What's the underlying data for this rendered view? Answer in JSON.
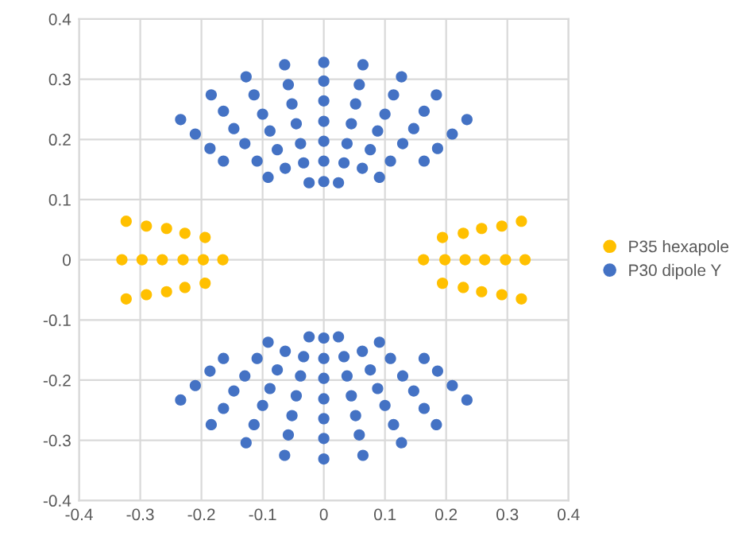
{
  "chart_data": {
    "type": "scatter",
    "series": [
      {
        "name": "P35 hexapole",
        "color": "#ffc000",
        "x": [
          -0.33,
          -0.297,
          -0.264,
          -0.23,
          -0.197,
          -0.165,
          -0.323,
          -0.29,
          -0.257,
          -0.227,
          -0.194,
          -0.323,
          -0.29,
          -0.257,
          -0.227,
          -0.194,
          0.163,
          0.198,
          0.231,
          0.263,
          0.297,
          0.329,
          0.194,
          0.228,
          0.258,
          0.291,
          0.323,
          0.194,
          0.228,
          0.258,
          0.291,
          0.323
        ],
        "values": [
          0,
          0,
          0,
          0,
          0,
          0,
          0.064,
          0.056,
          0.052,
          0.044,
          0.037,
          -0.065,
          -0.058,
          -0.053,
          -0.046,
          -0.039,
          0,
          0,
          0,
          0,
          0,
          0,
          0.037,
          0.044,
          0.052,
          0.056,
          0.064,
          -0.039,
          -0.046,
          -0.053,
          -0.058,
          -0.065
        ]
      },
      {
        "name": "P30 dipole Y",
        "color": "#4472c4",
        "x": [
          0,
          0,
          0,
          0,
          0,
          0,
          0,
          -0.024,
          0.024,
          -0.064,
          0.064,
          -0.058,
          0.058,
          -0.052,
          0.052,
          -0.045,
          0.045,
          -0.038,
          0.038,
          -0.033,
          0.033,
          -0.063,
          0.063,
          -0.127,
          0.127,
          -0.114,
          0.114,
          -0.1,
          0.1,
          -0.088,
          0.088,
          -0.076,
          0.076,
          -0.091,
          0.091,
          -0.129,
          0.129,
          -0.109,
          0.109,
          -0.184,
          0.184,
          -0.164,
          0.164,
          -0.147,
          0.147,
          -0.164,
          0.164,
          -0.186,
          0.186,
          -0.21,
          0.21,
          -0.234,
          0.234,
          0,
          0,
          0,
          0,
          0,
          0,
          0,
          -0.024,
          0.024,
          -0.064,
          0.064,
          -0.058,
          0.058,
          -0.052,
          0.052,
          -0.045,
          0.045,
          -0.038,
          0.038,
          -0.033,
          0.033,
          -0.063,
          0.063,
          -0.127,
          0.127,
          -0.114,
          0.114,
          -0.1,
          0.1,
          -0.088,
          0.088,
          -0.076,
          0.076,
          -0.091,
          0.091,
          -0.129,
          0.129,
          -0.109,
          0.109,
          -0.184,
          0.184,
          -0.164,
          0.164,
          -0.147,
          0.147,
          -0.164,
          0.164,
          -0.186,
          0.186,
          -0.21,
          0.21,
          -0.234,
          0.234
        ],
        "values": [
          0.328,
          0.297,
          0.264,
          0.23,
          0.197,
          0.164,
          0.13,
          0.128,
          0.128,
          0.324,
          0.324,
          0.291,
          0.291,
          0.259,
          0.259,
          0.226,
          0.226,
          0.193,
          0.193,
          0.161,
          0.161,
          0.152,
          0.152,
          0.304,
          0.304,
          0.274,
          0.274,
          0.242,
          0.242,
          0.214,
          0.214,
          0.183,
          0.183,
          0.137,
          0.137,
          0.193,
          0.193,
          0.164,
          0.164,
          0.274,
          0.274,
          0.247,
          0.247,
          0.218,
          0.218,
          0.164,
          0.164,
          0.185,
          0.185,
          0.209,
          0.209,
          0.233,
          0.233,
          -0.331,
          -0.297,
          -0.264,
          -0.231,
          -0.197,
          -0.164,
          -0.13,
          -0.128,
          -0.128,
          -0.325,
          -0.325,
          -0.291,
          -0.291,
          -0.259,
          -0.259,
          -0.226,
          -0.226,
          -0.193,
          -0.193,
          -0.161,
          -0.161,
          -0.152,
          -0.152,
          -0.304,
          -0.304,
          -0.274,
          -0.274,
          -0.242,
          -0.242,
          -0.214,
          -0.214,
          -0.183,
          -0.183,
          -0.137,
          -0.137,
          -0.193,
          -0.193,
          -0.164,
          -0.164,
          -0.274,
          -0.274,
          -0.247,
          -0.247,
          -0.218,
          -0.218,
          -0.164,
          -0.164,
          -0.185,
          -0.185,
          -0.209,
          -0.209,
          -0.233,
          -0.233
        ]
      }
    ],
    "xlim": [
      -0.4,
      0.4
    ],
    "ylim": [
      -0.4,
      0.4
    ],
    "xticks": [
      -0.4,
      -0.3,
      -0.2,
      -0.1,
      0,
      0.1,
      0.2,
      0.3,
      0.4
    ],
    "yticks": [
      -0.4,
      -0.3,
      -0.2,
      -0.1,
      0,
      0.1,
      0.2,
      0.3,
      0.4
    ],
    "grid": true,
    "legend": "right",
    "marker": "circle"
  }
}
